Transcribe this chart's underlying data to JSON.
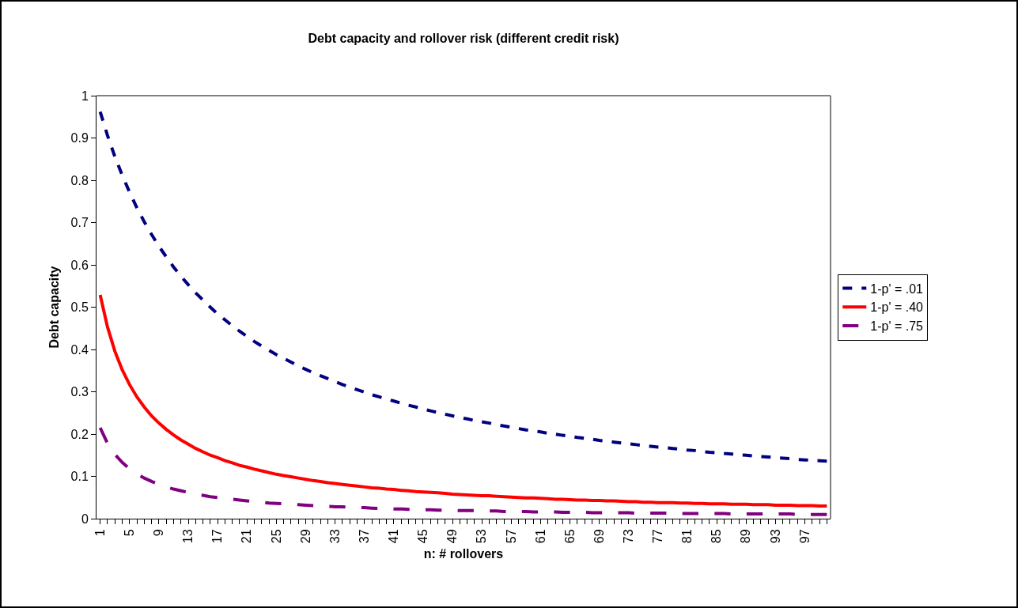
{
  "chart_data": {
    "type": "line",
    "title": "Debt capacity and rollover risk (different credit risk)",
    "xlabel": "n: # rollovers",
    "ylabel": "Debt capacity",
    "categories": [
      "1",
      null,
      null,
      null,
      "5",
      null,
      null,
      null,
      "9",
      null,
      null,
      null,
      "13",
      null,
      null,
      null,
      "17",
      null,
      null,
      null,
      "21",
      null,
      null,
      null,
      "25",
      null,
      null,
      null,
      "29",
      null,
      null,
      null,
      "33",
      null,
      null,
      null,
      "37",
      null,
      null,
      null,
      "41",
      null,
      null,
      null,
      "45",
      null,
      null,
      null,
      "49",
      null,
      null,
      null,
      "53",
      null,
      null,
      null,
      "57",
      null,
      null,
      null,
      "61",
      null,
      null,
      null,
      "65",
      null,
      null,
      null,
      "69",
      null,
      null,
      null,
      "73",
      null,
      null,
      null,
      "77",
      null,
      null,
      null,
      "81",
      null,
      null,
      null,
      "85",
      null,
      null,
      null,
      "89",
      null,
      null,
      null,
      "93",
      null,
      null,
      null,
      "97",
      null,
      null,
      null
    ],
    "series": [
      {
        "name": "1-p' = .01",
        "color": "#000080",
        "line_style": "dotted",
        "values": [
          0.962,
          0.906,
          0.856,
          0.812,
          0.772,
          0.735,
          0.702,
          0.672,
          0.644,
          0.619,
          0.595,
          0.573,
          0.553,
          0.534,
          0.517,
          0.5,
          0.484,
          0.47,
          0.456,
          0.443,
          0.431,
          0.419,
          0.408,
          0.398,
          0.388,
          0.379,
          0.37,
          0.361,
          0.353,
          0.345,
          0.338,
          0.331,
          0.324,
          0.317,
          0.311,
          0.305,
          0.299,
          0.293,
          0.288,
          0.283,
          0.278,
          0.273,
          0.268,
          0.264,
          0.259,
          0.255,
          0.251,
          0.247,
          0.243,
          0.239,
          0.236,
          0.232,
          0.229,
          0.226,
          0.222,
          0.219,
          0.216,
          0.213,
          0.21,
          0.208,
          0.205,
          0.202,
          0.2,
          0.197,
          0.195,
          0.192,
          0.19,
          0.188,
          0.185,
          0.183,
          0.181,
          0.179,
          0.177,
          0.175,
          0.173,
          0.171,
          0.169,
          0.168,
          0.166,
          0.164,
          0.162,
          0.161,
          0.159,
          0.157,
          0.156,
          0.154,
          0.153,
          0.151,
          0.15,
          0.148,
          0.147,
          0.146,
          0.144,
          0.143,
          0.142,
          0.14,
          0.139,
          0.138,
          0.137,
          0.136
        ]
      },
      {
        "name": "1-p' = .40",
        "color": "#ff0000",
        "line_style": "solid",
        "values": [
          0.529,
          0.453,
          0.396,
          0.352,
          0.317,
          0.288,
          0.264,
          0.243,
          0.226,
          0.211,
          0.198,
          0.186,
          0.176,
          0.166,
          0.158,
          0.15,
          0.144,
          0.137,
          0.132,
          0.126,
          0.122,
          0.117,
          0.113,
          0.109,
          0.105,
          0.102,
          0.099,
          0.096,
          0.093,
          0.09,
          0.088,
          0.085,
          0.083,
          0.081,
          0.079,
          0.077,
          0.075,
          0.073,
          0.072,
          0.07,
          0.069,
          0.067,
          0.066,
          0.064,
          0.063,
          0.062,
          0.061,
          0.06,
          0.058,
          0.057,
          0.056,
          0.055,
          0.054,
          0.054,
          0.053,
          0.052,
          0.051,
          0.05,
          0.049,
          0.049,
          0.048,
          0.047,
          0.046,
          0.046,
          0.045,
          0.044,
          0.044,
          0.043,
          0.043,
          0.042,
          0.042,
          0.041,
          0.04,
          0.04,
          0.039,
          0.039,
          0.038,
          0.038,
          0.038,
          0.037,
          0.037,
          0.036,
          0.036,
          0.035,
          0.035,
          0.035,
          0.034,
          0.034,
          0.034,
          0.033,
          0.033,
          0.033,
          0.032,
          0.032,
          0.032,
          0.031,
          0.031,
          0.031,
          0.03,
          0.03
        ]
      },
      {
        "name": "1-p' = .75",
        "color": "#800080",
        "line_style": "dashed",
        "values": [
          0.215,
          0.178,
          0.152,
          0.133,
          0.118,
          0.106,
          0.096,
          0.088,
          0.081,
          0.075,
          0.07,
          0.066,
          0.062,
          0.058,
          0.055,
          0.052,
          0.05,
          0.048,
          0.046,
          0.044,
          0.042,
          0.04,
          0.039,
          0.037,
          0.036,
          0.035,
          0.034,
          0.033,
          0.032,
          0.031,
          0.03,
          0.029,
          0.028,
          0.028,
          0.027,
          0.026,
          0.026,
          0.025,
          0.024,
          0.024,
          0.023,
          0.023,
          0.022,
          0.022,
          0.021,
          0.021,
          0.02,
          0.02,
          0.02,
          0.019,
          0.019,
          0.019,
          0.018,
          0.018,
          0.018,
          0.017,
          0.017,
          0.017,
          0.017,
          0.016,
          0.016,
          0.016,
          0.016,
          0.015,
          0.015,
          0.015,
          0.015,
          0.014,
          0.014,
          0.014,
          0.014,
          0.014,
          0.014,
          0.013,
          0.013,
          0.013,
          0.013,
          0.013,
          0.013,
          0.012,
          0.012,
          0.012,
          0.012,
          0.012,
          0.012,
          0.012,
          0.011,
          0.011,
          0.011,
          0.011,
          0.011,
          0.011,
          0.011,
          0.011,
          0.011,
          0.01,
          0.01,
          0.01,
          0.01,
          0.01
        ]
      }
    ],
    "ylim": [
      0,
      1
    ],
    "yticks": [
      0,
      0.1,
      0.2,
      0.3,
      0.4,
      0.5,
      0.6,
      0.7,
      0.8,
      0.9,
      1
    ],
    "grid": false,
    "legend": "right",
    "marker": "none"
  }
}
